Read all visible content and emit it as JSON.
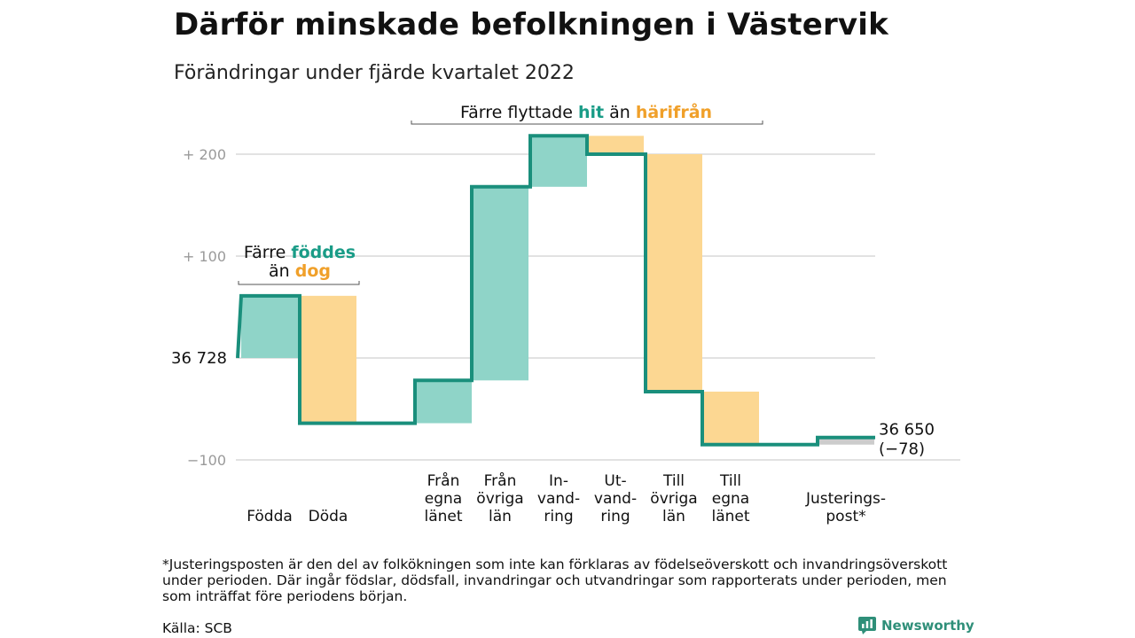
{
  "header": {
    "title": "Därför minskade befolkningen i Västervik",
    "subtitle": "Förändringar under fjärde kvartalet 2022"
  },
  "colors": {
    "inflow": "#8fd4c8",
    "outflow": "#fcd792",
    "adjustment": "#cccccc",
    "line": "#1a8f7c",
    "accent_teal": "#1a9c87",
    "accent_orange": "#f0a02a",
    "grid": "#e2e2e2",
    "tick_text": "#9a9a9a"
  },
  "chart_data": {
    "type": "waterfall",
    "start_label": "36 728",
    "end_label": "36 650",
    "end_change_label": "(−78)",
    "y_ticks": [
      {
        "value": 200,
        "label": "+ 200"
      },
      {
        "value": 100,
        "label": "+ 100"
      },
      {
        "value": 0,
        "label": ""
      },
      {
        "value": -100,
        "label": "−100"
      }
    ],
    "ylim": [
      -105,
      225
    ],
    "bars": [
      {
        "label": [
          "Födda"
        ],
        "change": 61,
        "kind": "inflow"
      },
      {
        "label": [
          "Döda"
        ],
        "change": -125,
        "kind": "outflow"
      },
      {
        "label": [
          "Från",
          "egna",
          "länet"
        ],
        "change": 42,
        "kind": "inflow"
      },
      {
        "label": [
          "Från",
          "övriga",
          "län"
        ],
        "change": 190,
        "kind": "inflow"
      },
      {
        "label": [
          "In-",
          "vand-",
          "ring"
        ],
        "change": 50,
        "kind": "inflow"
      },
      {
        "label": [
          "Ut-",
          "vand-",
          "ring"
        ],
        "change": -18,
        "kind": "outflow"
      },
      {
        "label": [
          "Till",
          "övriga",
          "län"
        ],
        "change": -233,
        "kind": "outflow"
      },
      {
        "label": [
          "Till",
          "egna",
          "länet"
        ],
        "change": -52,
        "kind": "outflow"
      },
      {
        "label": [
          "Justerings-",
          "post*"
        ],
        "change": 7,
        "kind": "adjustment"
      }
    ],
    "annotations": {
      "births": {
        "line1": "Färre ",
        "line1_accent": "föddes",
        "line2": "än ",
        "line2_accent": "dog"
      },
      "moves": {
        "text": "Färre flyttade ",
        "accent1": "hit",
        "mid": " än ",
        "accent2": "härifrån"
      }
    }
  },
  "footer": {
    "footnote": "*Justeringsposten är den del av folkökningen som inte kan förklaras av födelseöverskott och invandringsöverskott under perioden. Där ingår födslar, dödsfall, invandringar och utvandringar som rapporterats under perioden, men som inträffat före periodens början.",
    "source": "Källa: SCB",
    "brand": "Newsworthy"
  }
}
